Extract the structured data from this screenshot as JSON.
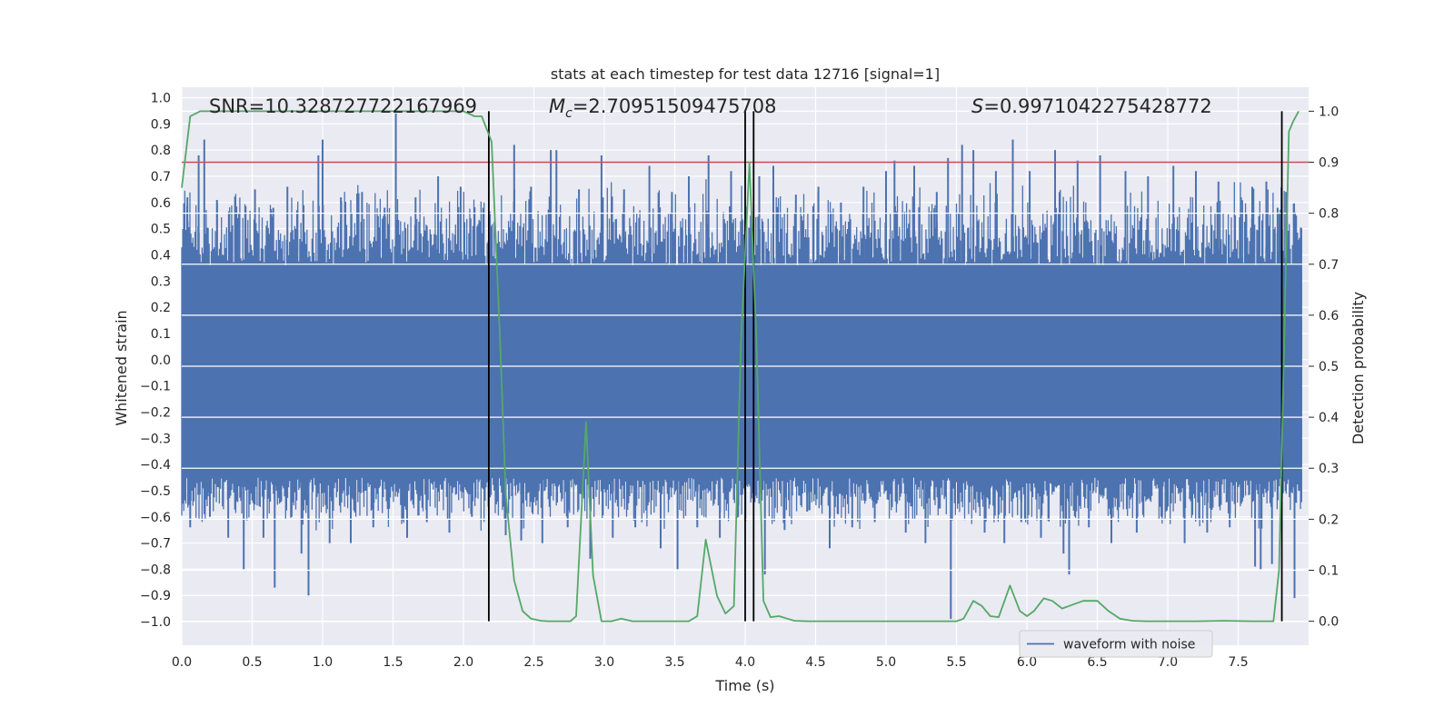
{
  "chart_data": {
    "type": "line",
    "title": "stats at each timestep for test data 12716 [signal=1]",
    "xlabel": "Time (s)",
    "ylabel": "Whitened strain",
    "y2label": "Detection probability",
    "xlim": [
      0,
      8
    ],
    "ylim": [
      -1.09,
      1.04
    ],
    "y2lim": [
      -0.047,
      1.047
    ],
    "xticks": [
      0.0,
      0.5,
      1.0,
      1.5,
      2.0,
      2.5,
      3.0,
      3.5,
      4.0,
      4.5,
      5.0,
      5.5,
      6.0,
      6.5,
      7.0,
      7.5
    ],
    "xtick_labels": [
      "0.0",
      "0.5",
      "1.0",
      "1.5",
      "2.0",
      "2.5",
      "3.0",
      "3.5",
      "4.0",
      "4.5",
      "5.0",
      "5.5",
      "6.0",
      "6.5",
      "7.0",
      "7.5"
    ],
    "yticks": [
      1.0,
      0.9,
      0.8,
      0.7,
      0.6,
      0.5,
      0.4,
      0.3,
      0.2,
      0.1,
      0.0,
      -0.1,
      -0.2,
      -0.3,
      -0.4,
      -0.5,
      -0.6,
      -0.7,
      -0.8,
      -0.9,
      -1.0
    ],
    "ytick_labels": [
      "1.0",
      "0.9",
      "0.8",
      "0.7",
      "0.6",
      "0.5",
      "0.4",
      "0.3",
      "0.2",
      "0.1",
      "0.0",
      "−0.1",
      "−0.2",
      "−0.3",
      "−0.4",
      "−0.5",
      "−0.6",
      "−0.7",
      "−0.8",
      "−0.9",
      "−1.0"
    ],
    "y2ticks": [
      1.0,
      0.9,
      0.8,
      0.7,
      0.6,
      0.5,
      0.4,
      0.3,
      0.2,
      0.1,
      0.0
    ],
    "y2tick_labels": [
      "1.0",
      "0.9",
      "0.8",
      "0.7",
      "0.6",
      "0.5",
      "0.4",
      "0.3",
      "0.2",
      "0.1",
      "0.0"
    ],
    "annotations": {
      "snr": "SNR=10.328727722167969",
      "mc_symbol": "M",
      "mc_sub": "c",
      "mc_value": "=2.70951509475708",
      "s_symbol": "S",
      "s_value": "=0.9971042275428772"
    },
    "threshold_y2": 0.9,
    "vertical_lines_x": [
      2.18,
      4.0,
      4.06,
      7.81
    ],
    "waveform": {
      "name": "waveform with noise",
      "color": "#4c72b0",
      "dense_band": [
        -0.45,
        0.36
      ],
      "typical_amplitude": [
        -0.6,
        0.6
      ],
      "spikes": [
        {
          "x": 0.04,
          "y": 0.62
        },
        {
          "x": 0.06,
          "y": -0.64
        },
        {
          "x": 0.12,
          "y": 0.78
        },
        {
          "x": 0.16,
          "y": 0.84
        },
        {
          "x": 0.2,
          "y": -0.6
        },
        {
          "x": 0.25,
          "y": 0.61
        },
        {
          "x": 0.33,
          "y": -0.68
        },
        {
          "x": 0.4,
          "y": 0.54
        },
        {
          "x": 0.44,
          "y": -0.8
        },
        {
          "x": 0.52,
          "y": 0.65
        },
        {
          "x": 0.58,
          "y": -0.68
        },
        {
          "x": 0.65,
          "y": 0.58
        },
        {
          "x": 0.66,
          "y": -0.87
        },
        {
          "x": 0.75,
          "y": 0.66
        },
        {
          "x": 0.78,
          "y": -0.6
        },
        {
          "x": 0.85,
          "y": -0.74
        },
        {
          "x": 0.9,
          "y": -0.9
        },
        {
          "x": 0.97,
          "y": 0.78
        },
        {
          "x": 1.0,
          "y": 0.84
        },
        {
          "x": 1.05,
          "y": -0.7
        },
        {
          "x": 1.13,
          "y": 0.62
        },
        {
          "x": 1.2,
          "y": -0.7
        },
        {
          "x": 1.28,
          "y": 0.64
        },
        {
          "x": 1.36,
          "y": -0.64
        },
        {
          "x": 1.44,
          "y": 0.58
        },
        {
          "x": 1.52,
          "y": 0.94
        },
        {
          "x": 1.6,
          "y": -0.68
        },
        {
          "x": 1.66,
          "y": 0.62
        },
        {
          "x": 1.74,
          "y": -0.62
        },
        {
          "x": 1.82,
          "y": 0.7
        },
        {
          "x": 1.9,
          "y": -0.66
        },
        {
          "x": 1.98,
          "y": 0.66
        },
        {
          "x": 2.06,
          "y": -0.6
        },
        {
          "x": 2.14,
          "y": 0.58
        },
        {
          "x": 2.22,
          "y": -0.5
        },
        {
          "x": 2.3,
          "y": -0.67
        },
        {
          "x": 2.36,
          "y": 0.82
        },
        {
          "x": 2.41,
          "y": -0.69
        },
        {
          "x": 2.48,
          "y": 0.66
        },
        {
          "x": 2.56,
          "y": -0.7
        },
        {
          "x": 2.62,
          "y": 0.8
        },
        {
          "x": 2.66,
          "y": 0.8
        },
        {
          "x": 2.74,
          "y": -0.64
        },
        {
          "x": 2.82,
          "y": 0.65
        },
        {
          "x": 2.9,
          "y": -0.76
        },
        {
          "x": 2.98,
          "y": 0.78
        },
        {
          "x": 3.06,
          "y": -0.68
        },
        {
          "x": 3.14,
          "y": 0.65
        },
        {
          "x": 3.22,
          "y": -0.64
        },
        {
          "x": 3.32,
          "y": 0.74
        },
        {
          "x": 3.4,
          "y": -0.72
        },
        {
          "x": 3.48,
          "y": 0.64
        },
        {
          "x": 3.52,
          "y": -0.8
        },
        {
          "x": 3.6,
          "y": 0.7
        },
        {
          "x": 3.66,
          "y": -0.64
        },
        {
          "x": 3.74,
          "y": 0.78
        },
        {
          "x": 3.82,
          "y": -0.68
        },
        {
          "x": 3.9,
          "y": 0.72
        },
        {
          "x": 3.95,
          "y": -0.6
        },
        {
          "x": 4.04,
          "y": 0.55
        },
        {
          "x": 4.1,
          "y": 0.7
        },
        {
          "x": 4.14,
          "y": -0.82
        },
        {
          "x": 4.2,
          "y": 0.74
        },
        {
          "x": 4.28,
          "y": -0.65
        },
        {
          "x": 4.36,
          "y": 0.63
        },
        {
          "x": 4.44,
          "y": -0.58
        },
        {
          "x": 4.52,
          "y": 0.66
        },
        {
          "x": 4.6,
          "y": -0.72
        },
        {
          "x": 4.68,
          "y": 0.6
        },
        {
          "x": 4.76,
          "y": -0.64
        },
        {
          "x": 4.84,
          "y": 0.66
        },
        {
          "x": 4.92,
          "y": -0.62
        },
        {
          "x": 5.0,
          "y": 0.72
        },
        {
          "x": 5.06,
          "y": 0.76
        },
        {
          "x": 5.14,
          "y": -0.66
        },
        {
          "x": 5.2,
          "y": 0.74
        },
        {
          "x": 5.28,
          "y": -0.7
        },
        {
          "x": 5.36,
          "y": 0.64
        },
        {
          "x": 5.44,
          "y": 0.77
        },
        {
          "x": 5.46,
          "y": -0.99
        },
        {
          "x": 5.54,
          "y": 0.82
        },
        {
          "x": 5.62,
          "y": 0.8
        },
        {
          "x": 5.7,
          "y": -0.66
        },
        {
          "x": 5.78,
          "y": 0.72
        },
        {
          "x": 5.84,
          "y": -0.7
        },
        {
          "x": 5.9,
          "y": 0.84
        },
        {
          "x": 5.96,
          "y": -0.62
        },
        {
          "x": 6.02,
          "y": 0.72
        },
        {
          "x": 6.1,
          "y": -0.68
        },
        {
          "x": 6.2,
          "y": 0.8
        },
        {
          "x": 6.26,
          "y": -0.74
        },
        {
          "x": 6.3,
          "y": -0.82
        },
        {
          "x": 6.36,
          "y": 0.76
        },
        {
          "x": 6.44,
          "y": -0.64
        },
        {
          "x": 6.52,
          "y": 0.78
        },
        {
          "x": 6.6,
          "y": -0.7
        },
        {
          "x": 6.7,
          "y": 0.72
        },
        {
          "x": 6.78,
          "y": -0.66
        },
        {
          "x": 6.86,
          "y": 0.7
        },
        {
          "x": 6.96,
          "y": -0.6
        },
        {
          "x": 7.04,
          "y": 0.74
        },
        {
          "x": 7.12,
          "y": -0.7
        },
        {
          "x": 7.2,
          "y": 0.72
        },
        {
          "x": 7.28,
          "y": -0.66
        },
        {
          "x": 7.36,
          "y": 0.68
        },
        {
          "x": 7.44,
          "y": -0.64
        },
        {
          "x": 7.52,
          "y": 0.62
        },
        {
          "x": 7.6,
          "y": 0.66
        },
        {
          "x": 7.62,
          "y": -0.79
        },
        {
          "x": 7.66,
          "y": -0.8
        },
        {
          "x": 7.7,
          "y": 0.68
        },
        {
          "x": 7.74,
          "y": -0.78
        },
        {
          "x": 7.78,
          "y": 0.58
        },
        {
          "x": 7.84,
          "y": 0.64
        },
        {
          "x": 7.9,
          "y": -0.91
        }
      ]
    },
    "probability": {
      "name": "detection probability",
      "color": "#55a868",
      "x": [
        0.0,
        0.06,
        0.13,
        0.2,
        0.3,
        0.4,
        0.5,
        0.6,
        0.7,
        0.8,
        0.9,
        1.0,
        1.1,
        1.2,
        1.3,
        1.4,
        1.5,
        1.6,
        1.7,
        1.8,
        1.9,
        2.0,
        2.08,
        2.13,
        2.2,
        2.26,
        2.3,
        2.36,
        2.42,
        2.48,
        2.55,
        2.6,
        2.7,
        2.76,
        2.8,
        2.87,
        2.92,
        2.98,
        3.05,
        3.12,
        3.2,
        3.3,
        3.4,
        3.5,
        3.6,
        3.66,
        3.72,
        3.8,
        3.86,
        3.92,
        3.97,
        4.03,
        4.08,
        4.13,
        4.18,
        4.24,
        4.3,
        4.35,
        4.45,
        4.55,
        4.7,
        4.9,
        5.1,
        5.3,
        5.5,
        5.55,
        5.62,
        5.68,
        5.74,
        5.8,
        5.88,
        5.95,
        6.0,
        6.05,
        6.12,
        6.18,
        6.25,
        6.3,
        6.4,
        6.5,
        6.58,
        6.66,
        6.75,
        6.85,
        7.0,
        7.2,
        7.4,
        7.6,
        7.75,
        7.79,
        7.86,
        7.89,
        7.93
      ],
      "y": [
        0.85,
        0.99,
        1.0,
        1.0,
        1.0,
        1.0,
        1.0,
        1.0,
        1.0,
        1.0,
        1.0,
        1.0,
        1.0,
        1.0,
        1.0,
        1.0,
        1.0,
        1.0,
        1.0,
        1.0,
        1.0,
        1.0,
        0.99,
        0.99,
        0.94,
        0.55,
        0.25,
        0.08,
        0.02,
        0.005,
        0.001,
        0.0,
        0.0,
        0.0,
        0.01,
        0.39,
        0.09,
        0.0,
        0.0,
        0.005,
        0.0,
        0.0,
        0.0,
        0.0,
        0.0,
        0.01,
        0.16,
        0.05,
        0.015,
        0.03,
        0.55,
        0.9,
        0.55,
        0.04,
        0.008,
        0.01,
        0.005,
        0.001,
        0.0,
        0.0,
        0.0,
        0.0,
        0.0,
        0.0,
        0.0,
        0.005,
        0.04,
        0.03,
        0.01,
        0.008,
        0.07,
        0.02,
        0.01,
        0.02,
        0.045,
        0.04,
        0.025,
        0.03,
        0.04,
        0.04,
        0.02,
        0.005,
        0.001,
        0.0,
        0.0,
        0.0,
        0.001,
        0.0,
        0.0,
        0.1,
        0.96,
        0.98,
        1.0
      ]
    },
    "legend": {
      "label": "waveform with noise",
      "position": "lower-right"
    },
    "colors": {
      "axes_bg": "#eaeaf2",
      "grid": "#ffffff",
      "threshold": "#c44e52",
      "vline": "#000000"
    }
  }
}
